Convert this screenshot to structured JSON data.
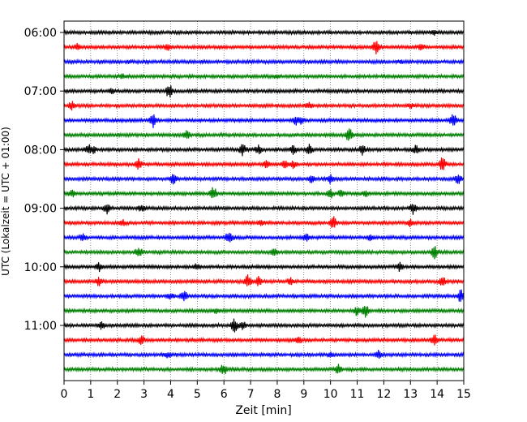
{
  "chart_data": {
    "type": "line",
    "title": "",
    "xlabel": "Zeit  [min]",
    "ylabel": "UTC (Lokalzeit = UTC + 01:00)",
    "xlim": [
      0,
      15
    ],
    "x_ticks": [
      "0",
      "1",
      "2",
      "3",
      "4",
      "5",
      "6",
      "7",
      "8",
      "9",
      "10",
      "11",
      "12",
      "13",
      "14",
      "15"
    ],
    "y_tick_labels": [
      "06:00",
      "07:00",
      "08:00",
      "09:00",
      "10:00",
      "11:00"
    ],
    "grid": "vertical dotted",
    "trace_colors": [
      "#000000",
      "#ff0000",
      "#0000ff",
      "#008000"
    ],
    "traces": [
      {
        "start": "06:00",
        "color": "#000000",
        "events": [
          [
            13.9,
            0.3
          ]
        ]
      },
      {
        "start": "06:15",
        "color": "#ff0000",
        "events": [
          [
            0.5,
            0.4
          ],
          [
            3.9,
            0.4
          ],
          [
            11.7,
            1.0
          ],
          [
            13.4,
            0.4
          ]
        ]
      },
      {
        "start": "06:30",
        "color": "#0000ff",
        "events": [
          [
            2.5,
            0.2
          ],
          [
            12.6,
            0.2
          ]
        ]
      },
      {
        "start": "06:45",
        "color": "#008000",
        "events": [
          [
            2.2,
            0.3
          ],
          [
            8.0,
            0.2
          ]
        ]
      },
      {
        "start": "07:00",
        "color": "#000000",
        "events": [
          [
            1.8,
            0.4
          ],
          [
            3.95,
            1.0
          ]
        ]
      },
      {
        "start": "07:15",
        "color": "#ff0000",
        "events": [
          [
            0.3,
            0.6
          ],
          [
            9.2,
            0.4
          ],
          [
            13.0,
            0.3
          ]
        ]
      },
      {
        "start": "07:30",
        "color": "#0000ff",
        "events": [
          [
            3.35,
            1.0
          ],
          [
            8.7,
            0.6
          ],
          [
            8.9,
            0.5
          ],
          [
            14.6,
            1.0
          ]
        ]
      },
      {
        "start": "07:45",
        "color": "#008000",
        "events": [
          [
            4.6,
            0.6
          ],
          [
            10.7,
            1.0
          ]
        ]
      },
      {
        "start": "08:00",
        "color": "#000000",
        "events": [
          [
            0.9,
            0.7
          ],
          [
            1.1,
            0.5
          ],
          [
            6.7,
            0.9
          ],
          [
            7.3,
            0.6
          ],
          [
            8.6,
            0.6
          ],
          [
            9.2,
            0.7
          ],
          [
            11.2,
            0.8
          ],
          [
            13.2,
            0.6
          ]
        ]
      },
      {
        "start": "08:15",
        "color": "#ff0000",
        "events": [
          [
            2.8,
            0.8
          ],
          [
            7.6,
            0.6
          ],
          [
            8.3,
            0.6
          ],
          [
            8.6,
            0.5
          ],
          [
            14.2,
            1.0
          ]
        ]
      },
      {
        "start": "08:30",
        "color": "#0000ff",
        "events": [
          [
            4.1,
            0.7
          ],
          [
            9.3,
            0.6
          ],
          [
            10.0,
            0.7
          ],
          [
            14.8,
            0.8
          ]
        ]
      },
      {
        "start": "08:45",
        "color": "#008000",
        "events": [
          [
            0.3,
            0.5
          ],
          [
            5.6,
            1.0
          ],
          [
            10.0,
            0.6
          ],
          [
            10.4,
            0.5
          ],
          [
            11.3,
            0.4
          ]
        ]
      },
      {
        "start": "09:00",
        "color": "#000000",
        "events": [
          [
            1.6,
            0.8
          ],
          [
            2.9,
            0.5
          ],
          [
            13.1,
            0.8
          ]
        ]
      },
      {
        "start": "09:15",
        "color": "#ff0000",
        "events": [
          [
            2.2,
            0.4
          ],
          [
            7.4,
            0.4
          ],
          [
            10.1,
            0.9
          ],
          [
            13.0,
            0.5
          ]
        ]
      },
      {
        "start": "09:30",
        "color": "#0000ff",
        "events": [
          [
            0.7,
            0.5
          ],
          [
            6.2,
            1.0
          ],
          [
            9.1,
            0.5
          ],
          [
            11.5,
            0.5
          ]
        ]
      },
      {
        "start": "09:45",
        "color": "#008000",
        "events": [
          [
            2.8,
            0.7
          ],
          [
            7.9,
            0.5
          ],
          [
            13.9,
            0.9
          ]
        ]
      },
      {
        "start": "10:00",
        "color": "#000000",
        "events": [
          [
            1.3,
            0.7
          ],
          [
            5.0,
            0.5
          ],
          [
            12.6,
            0.6
          ]
        ]
      },
      {
        "start": "10:15",
        "color": "#ff0000",
        "events": [
          [
            1.3,
            0.6
          ],
          [
            6.9,
            1.0
          ],
          [
            7.3,
            0.7
          ],
          [
            8.5,
            0.6
          ],
          [
            14.2,
            0.6
          ]
        ]
      },
      {
        "start": "10:30",
        "color": "#0000ff",
        "events": [
          [
            4.0,
            0.4
          ],
          [
            4.5,
            0.7
          ],
          [
            14.9,
            1.0
          ]
        ]
      },
      {
        "start": "10:45",
        "color": "#008000",
        "events": [
          [
            5.7,
            0.4
          ],
          [
            11.0,
            0.7
          ],
          [
            11.3,
            0.9
          ]
        ]
      },
      {
        "start": "11:00",
        "color": "#000000",
        "events": [
          [
            1.4,
            0.5
          ],
          [
            6.4,
            1.0
          ],
          [
            6.7,
            0.5
          ]
        ]
      },
      {
        "start": "11:15",
        "color": "#ff0000",
        "events": [
          [
            2.9,
            0.7
          ],
          [
            8.8,
            0.5
          ],
          [
            13.9,
            0.8
          ]
        ]
      },
      {
        "start": "11:30",
        "color": "#0000ff",
        "events": [
          [
            3.9,
            0.4
          ],
          [
            10.0,
            0.3
          ],
          [
            11.8,
            0.5
          ]
        ]
      },
      {
        "start": "11:45",
        "color": "#008000",
        "events": [
          [
            6.0,
            0.8
          ],
          [
            10.3,
            0.7
          ]
        ]
      }
    ]
  }
}
